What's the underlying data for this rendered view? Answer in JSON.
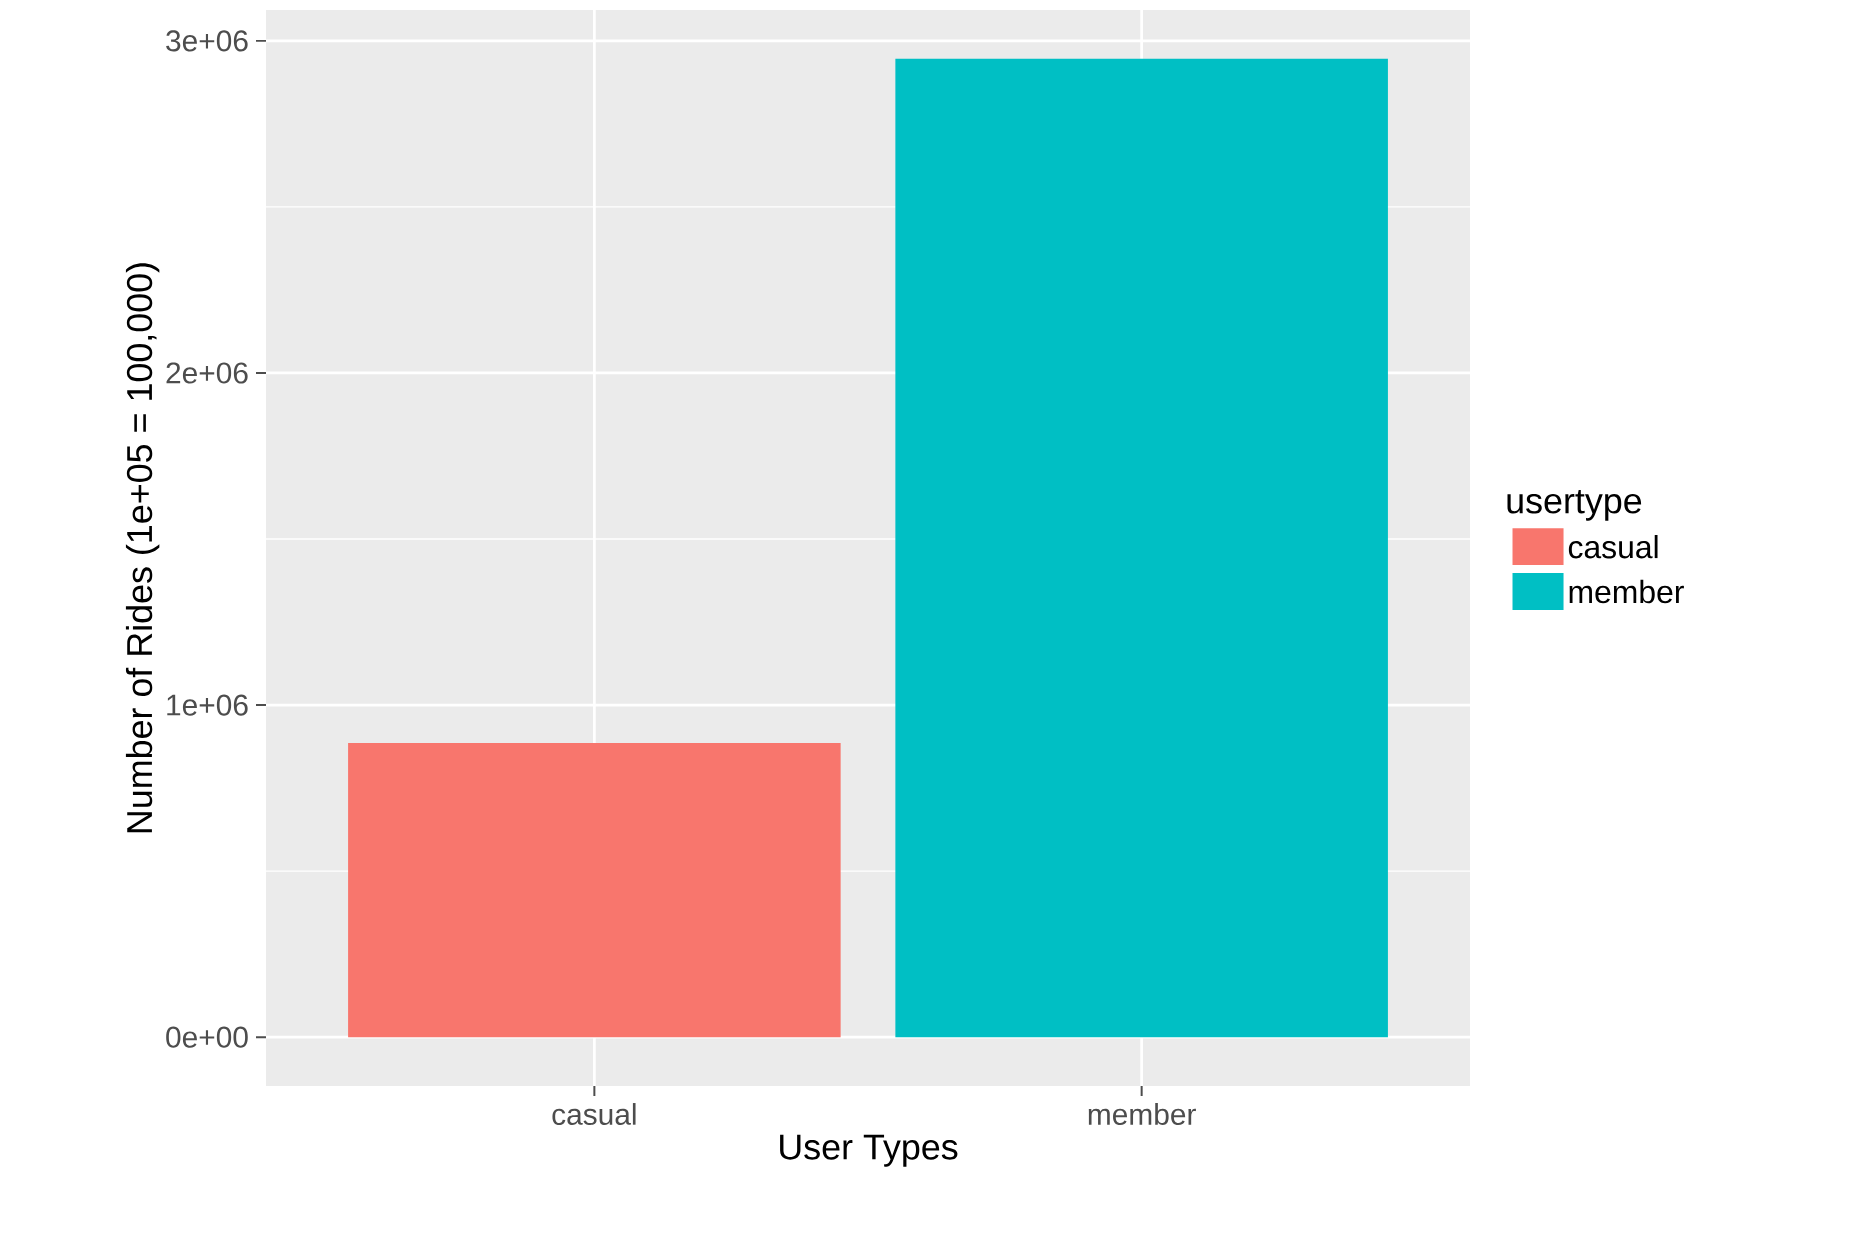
{
  "chart_data": {
    "type": "bar",
    "xlabel": "User Types",
    "ylabel": "Number of Rides (1e+05 = 100,000)",
    "legend_title": "usertype",
    "categories": [
      "casual",
      "member"
    ],
    "series": [
      {
        "name": "casual",
        "color": "#f8766d",
        "values": [
          886000,
          null
        ]
      },
      {
        "name": "member",
        "color": "#00bfc4",
        "values": [
          null,
          2946000
        ]
      }
    ],
    "ylim": [
      -147000,
      3093000
    ],
    "yticks": [
      {
        "value": 0,
        "label": "0e+00"
      },
      {
        "value": 1000000,
        "label": "1e+06"
      },
      {
        "value": 2000000,
        "label": "2e+06"
      },
      {
        "value": 3000000,
        "label": "3e+06"
      }
    ],
    "grid": true,
    "legend": "right"
  }
}
